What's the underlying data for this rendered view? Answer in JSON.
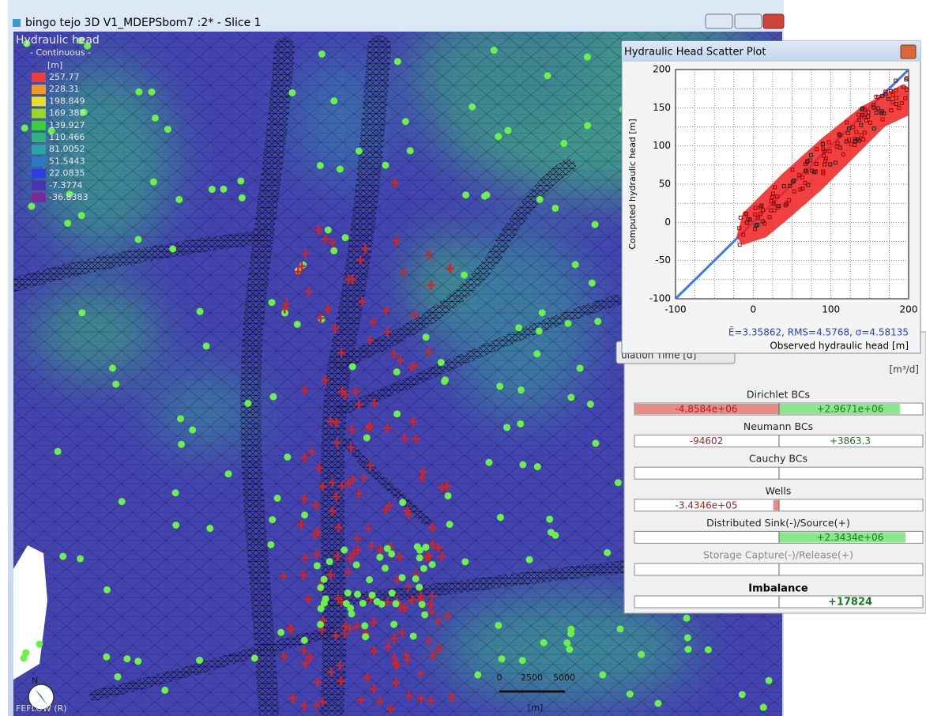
{
  "window": {
    "title": "bingo tejo 3D V1_MDEPSbom7 :2* - Slice 1"
  },
  "legend": {
    "title": "Hydraulic head",
    "mode": "- Continuous -",
    "unit": "[m]",
    "items": [
      {
        "label": "257.77",
        "color": "#e8413c"
      },
      {
        "label": "228.31",
        "color": "#f19a2c"
      },
      {
        "label": "198.849",
        "color": "#e6e02a"
      },
      {
        "label": "169.388",
        "color": "#9ad62a"
      },
      {
        "label": "139.927",
        "color": "#3ccf3a"
      },
      {
        "label": "110.466",
        "color": "#2fb27c"
      },
      {
        "label": "81.0052",
        "color": "#2ea2a6"
      },
      {
        "label": "51.5443",
        "color": "#2c77c6"
      },
      {
        "label": "22.0835",
        "color": "#2a3fe0"
      },
      {
        "label": "-7.3774",
        "color": "#4a33b4"
      },
      {
        "label": "-36.8383",
        "color": "#7a2a96"
      }
    ]
  },
  "scatter_plot": {
    "title": "Hydraulic Head Scatter Plot",
    "y_label": "Computed hydraulic head [m]",
    "x_label": "Observed hydraulic head [m]",
    "xticks": [
      -100,
      0,
      100,
      200
    ],
    "yticks": [
      -100,
      -50,
      0,
      50,
      100,
      150,
      200
    ],
    "stats": "Ē=3.35862, RMS=4.5768, σ=4.58135"
  },
  "budget": {
    "hidden_header": "ulation Time [d]",
    "unit": "[m³/d]",
    "rows": [
      {
        "label": "Dirichlet BCs",
        "negative": "-4.8584e+06",
        "positive": "+2.9671e+06"
      },
      {
        "label": "Neumann BCs",
        "negative": "-94602",
        "positive": "+3863.3"
      },
      {
        "label": "Cauchy BCs"
      },
      {
        "label": "Wells",
        "negative": "-3.4346e+05"
      },
      {
        "label": "Distributed Sink(-)/Source(+)",
        "positive": "+2.3434e+06"
      },
      {
        "label": "Storage Capture(-)/Release(+)"
      }
    ],
    "imbalance": {
      "label": "Imbalance",
      "value": "+17824"
    }
  },
  "map": {
    "north": "N",
    "scale_labels": [
      "0",
      "2500",
      "5000"
    ],
    "scale_unit": "[m]",
    "footer": "FEFLOW (R)"
  }
}
